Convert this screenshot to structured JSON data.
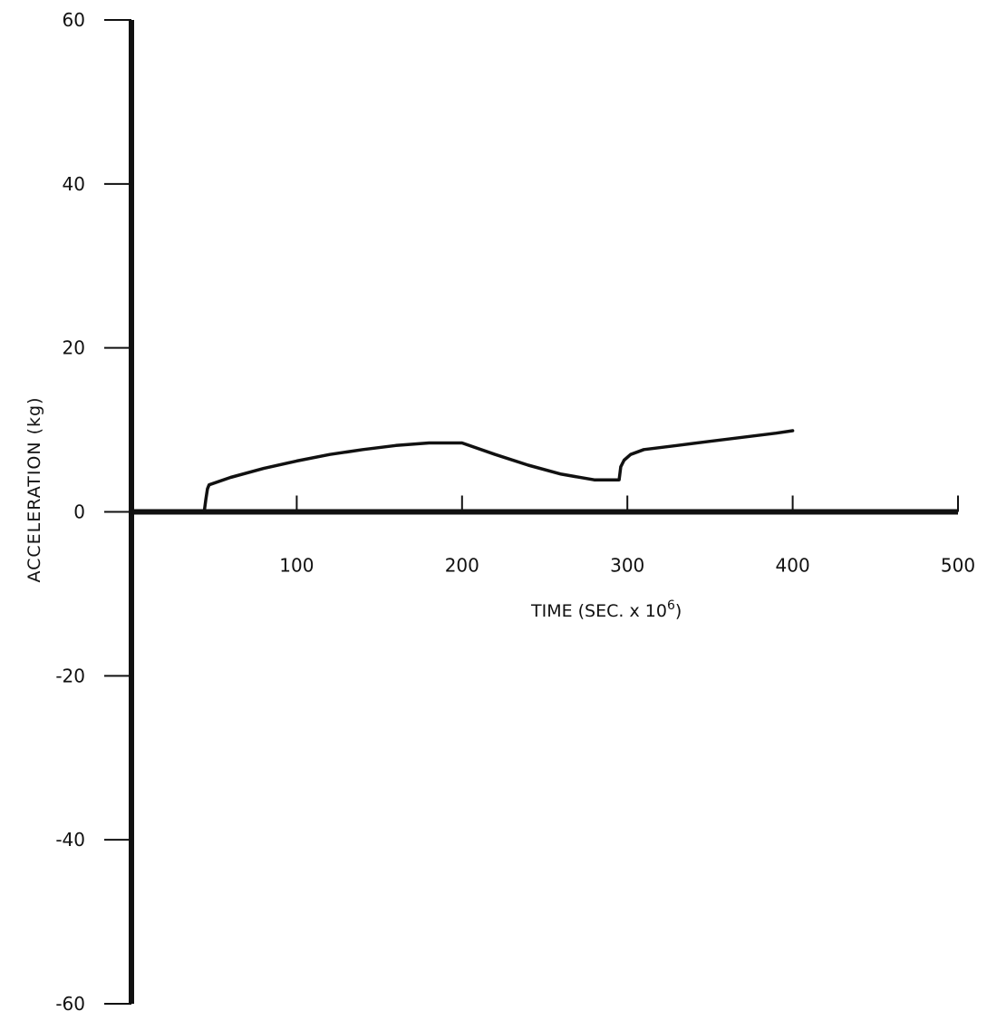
{
  "chart_data": {
    "type": "line",
    "title": "",
    "xlabel": "TIME (SEC. x 10",
    "xlabel_superscript": "6",
    "xlabel_suffix": ")",
    "ylabel": "ACCELERATION (kg)",
    "xlim": [
      0,
      500
    ],
    "ylim": [
      -60,
      60
    ],
    "x_ticks": [
      100,
      200,
      300,
      400,
      500
    ],
    "x_tick_labels": [
      "100",
      "200",
      "300",
      "400",
      "500"
    ],
    "y_ticks": [
      60,
      40,
      20,
      0,
      -20,
      -40,
      -60
    ],
    "y_tick_labels": [
      "60",
      "40",
      "20",
      "0",
      "-20",
      "-40",
      "-60"
    ],
    "grid": false,
    "line_color": "#111111",
    "series": [
      {
        "x": [
          0,
          44,
          45,
          46,
          47,
          60,
          80,
          100,
          120,
          140,
          160,
          180,
          200,
          220,
          240,
          260,
          280,
          295,
          296,
          298,
          302,
          310,
          330,
          350,
          370,
          390,
          400
        ],
        "y": [
          0,
          0,
          1.5,
          2.8,
          3.3,
          4.2,
          5.3,
          6.2,
          7.0,
          7.6,
          8.1,
          8.4,
          8.4,
          7.0,
          5.7,
          4.6,
          3.9,
          3.9,
          5.5,
          6.3,
          7.0,
          7.6,
          8.1,
          8.6,
          9.1,
          9.6,
          9.9
        ]
      }
    ]
  }
}
